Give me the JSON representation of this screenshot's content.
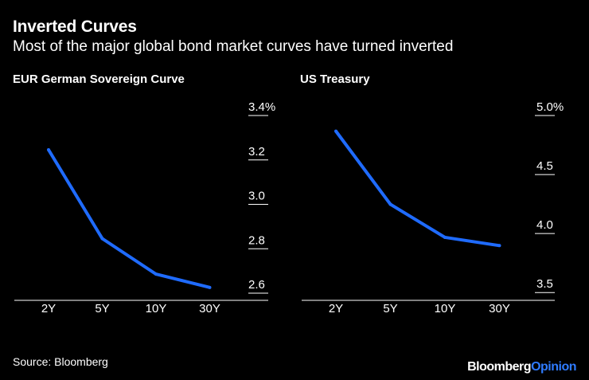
{
  "header": {
    "title": "Inverted Curves",
    "subtitle": "Most of the major global bond market curves have turned inverted"
  },
  "colors": {
    "background": "#000000",
    "line": "#1f6bff",
    "text": "#ffffff",
    "grid": "#ffffff",
    "brand_accent": "#2f7bff"
  },
  "chart_data": [
    {
      "type": "line",
      "title": "EUR German Sovereign Curve",
      "categories": [
        "2Y",
        "5Y",
        "10Y",
        "30Y"
      ],
      "values": [
        3.21,
        2.81,
        2.65,
        2.59
      ],
      "yticks": [
        "3.4%",
        "3.2",
        "3.0",
        "2.8",
        "2.6"
      ],
      "ytick_values": [
        3.4,
        3.2,
        3.0,
        2.8,
        2.6
      ],
      "ylim": [
        2.55,
        3.4
      ]
    },
    {
      "type": "line",
      "title": "US Treasury",
      "categories": [
        "2Y",
        "5Y",
        "10Y",
        "30Y"
      ],
      "values": [
        4.8,
        4.18,
        3.9,
        3.83
      ],
      "yticks": [
        "5.0%",
        "4.5",
        "4.0",
        "3.5"
      ],
      "ytick_values": [
        5.0,
        4.5,
        4.0,
        3.5
      ],
      "ylim": [
        3.4,
        5.0
      ]
    }
  ],
  "footer": {
    "source": "Source: Bloomberg",
    "brand_part1": "Bloomberg",
    "brand_part2": "Opinion"
  }
}
